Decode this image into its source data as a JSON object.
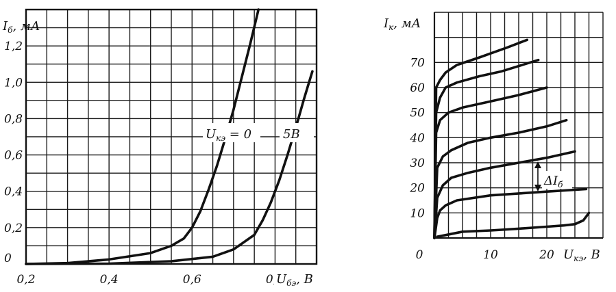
{
  "chart_data": [
    {
      "type": "line",
      "title": "",
      "ylabel": "Iб, мА",
      "xlabel": "Uбэ, В",
      "ylabel_main": "I",
      "ylabel_sub": "б",
      "ylabel_unit": ", мА",
      "xlabel_main": "U",
      "xlabel_sub": "бэ",
      "xlabel_unit": ", В",
      "xlim": [
        0.2,
        0.9
      ],
      "ylim": [
        0,
        1.4
      ],
      "x_ticks": [
        "0,2",
        "0,4",
        "0,6",
        "0,8"
      ],
      "x_tick_values": [
        0.2,
        0.4,
        0.6,
        0.8
      ],
      "y_ticks": [
        "0",
        "0,2",
        "0,4",
        "0,6",
        "0,8",
        "1,0",
        "1,2"
      ],
      "y_tick_values": [
        0,
        0.2,
        0.4,
        0.6,
        0.8,
        1.0,
        1.2
      ],
      "grid": true,
      "series": [
        {
          "name": "Uкэ = 0",
          "x": [
            0.2,
            0.3,
            0.4,
            0.5,
            0.55,
            0.58,
            0.6,
            0.62,
            0.64,
            0.66,
            0.68,
            0.7,
            0.72,
            0.74,
            0.76
          ],
          "y": [
            0.0,
            0.005,
            0.025,
            0.06,
            0.1,
            0.14,
            0.2,
            0.29,
            0.41,
            0.54,
            0.69,
            0.85,
            1.03,
            1.21,
            1.4
          ]
        },
        {
          "name": "5В",
          "x": [
            0.2,
            0.4,
            0.55,
            0.65,
            0.7,
            0.75,
            0.77,
            0.79,
            0.81,
            0.83,
            0.85,
            0.87,
            0.89
          ],
          "y": [
            0.0,
            0.002,
            0.015,
            0.04,
            0.08,
            0.16,
            0.24,
            0.34,
            0.46,
            0.6,
            0.75,
            0.91,
            1.06
          ]
        }
      ],
      "annotations": {
        "curve_label_main": "U",
        "curve_label_sub": "кэ",
        "curve_label_rest": " = 0",
        "curve_label_2": "5В"
      }
    },
    {
      "type": "line",
      "title": "",
      "ylabel": "Iк, мА",
      "xlabel": "Uкэ, В",
      "ylabel_main": "I",
      "ylabel_sub": "к",
      "ylabel_unit": ", мА",
      "xlabel_main": "U",
      "xlabel_sub": "кэ",
      "xlabel_unit": ", В",
      "xlim": [
        0,
        30
      ],
      "ylim": [
        0,
        90
      ],
      "x_ticks": [
        "0",
        "10",
        "20"
      ],
      "x_tick_values": [
        0,
        10,
        20
      ],
      "y_ticks": [
        "10",
        "20",
        "30",
        "40",
        "50",
        "60",
        "70"
      ],
      "y_tick_values": [
        10,
        20,
        30,
        40,
        50,
        60,
        70
      ],
      "grid": true,
      "series": [
        {
          "x": [
            0.5,
            5,
            10,
            15,
            20,
            23,
            25,
            26.5,
            27.5
          ],
          "y": [
            0.5,
            2.5,
            3,
            3.7,
            4.5,
            5,
            5.5,
            7,
            10
          ]
        },
        {
          "x": [
            0,
            0.5,
            1,
            2,
            4,
            10,
            20,
            27
          ],
          "y": [
            0,
            8,
            11,
            13,
            15,
            17,
            18.5,
            19.5
          ]
        },
        {
          "x": [
            0,
            0.5,
            1.5,
            3,
            6,
            10,
            15,
            20,
            25
          ],
          "y": [
            0,
            16,
            21,
            24,
            26,
            28,
            30,
            32,
            34.5
          ]
        },
        {
          "x": [
            0,
            0.5,
            1.5,
            3,
            6,
            10,
            15,
            20,
            23.5
          ],
          "y": [
            0,
            28,
            32.5,
            35,
            38,
            40,
            42,
            44.5,
            47
          ]
        },
        {
          "x": [
            0,
            0.3,
            1,
            2.5,
            5,
            10,
            15,
            20
          ],
          "y": [
            0,
            42,
            47,
            50,
            52,
            54.5,
            57,
            60
          ]
        },
        {
          "x": [
            0,
            0.3,
            1,
            2,
            4,
            8,
            12,
            18.5
          ],
          "y": [
            0,
            50,
            56,
            60,
            62,
            64.5,
            66.5,
            71
          ]
        },
        {
          "x": [
            0,
            0.3,
            1,
            2,
            4,
            8,
            13,
            16.5
          ],
          "y": [
            0,
            60,
            63,
            66,
            69,
            72,
            76,
            79
          ]
        }
      ],
      "annotations": {
        "delta_label_main": "ΔI",
        "delta_label_sub": "б"
      }
    }
  ]
}
